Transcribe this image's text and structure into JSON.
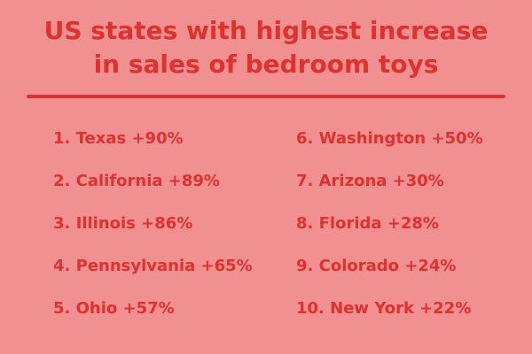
{
  "title": {
    "line1": "US states with highest increase",
    "line2": "in sales of bedroom toys"
  },
  "colors": {
    "background": "#f09090",
    "text": "#e0312f"
  },
  "rankings": {
    "left": [
      {
        "text": "1. Texas +90%"
      },
      {
        "text": "2. California +89%"
      },
      {
        "text": "3. Illinois +86%"
      },
      {
        "text": "4. Pennsylvania +65%"
      },
      {
        "text": "5. Ohio +57%"
      }
    ],
    "right": [
      {
        "text": "6. Washington +50%"
      },
      {
        "text": "7. Arizona +30%"
      },
      {
        "text": "8. Florida +28%"
      },
      {
        "text": "9. Colorado +24%"
      },
      {
        "text": "10. New York +22%"
      }
    ]
  }
}
